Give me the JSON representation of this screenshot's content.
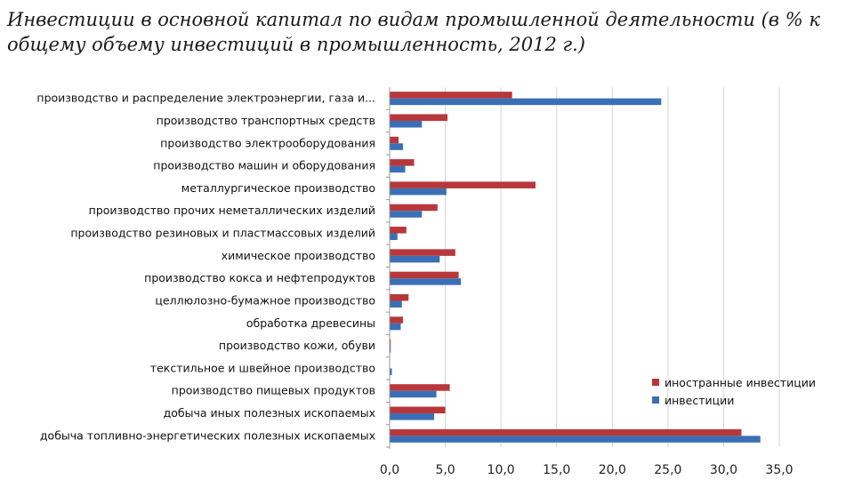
{
  "chart_data": {
    "type": "bar",
    "orientation": "horizontal",
    "title": "Инвестиции в основной капитал по видам промышленной деятельности (в % к общему объему инвестиций в промышленность, 2012 г.)",
    "categories": [
      "производство и распределение электроэнергии, газа и...",
      "производство транспортных средств",
      "производство электрооборудования",
      "производство машин и оборудования",
      "металлургическое производство",
      "производство прочих неметаллических изделий",
      "производство резиновых и пластмассовых изделий",
      "химическое производство",
      "производство кокса и нефтепродуктов",
      "целлюлозно-бумажное производство",
      "обработка древесины",
      "производство кожи, обуви",
      "текстильное и швейное производство",
      "производство пищевых продуктов",
      "добыча иных полезных ископаемых",
      "добыча топливно-энергетических полезных ископаемых"
    ],
    "series": [
      {
        "name": "иностранные инвестиции",
        "color": "#b8373a",
        "values": [
          11.0,
          5.2,
          0.8,
          2.2,
          13.1,
          4.3,
          1.5,
          5.9,
          6.2,
          1.7,
          1.2,
          0.1,
          0.0,
          5.4,
          5.0,
          31.6
        ]
      },
      {
        "name": "инвестиции",
        "color": "#3a6fb5",
        "values": [
          24.4,
          2.9,
          1.2,
          1.4,
          5.1,
          2.9,
          0.7,
          4.5,
          6.4,
          1.1,
          1.0,
          0.1,
          0.2,
          4.2,
          4.0,
          33.3
        ]
      }
    ],
    "xlim": [
      0,
      35
    ],
    "xticks": [
      "0,0",
      "5,0",
      "10,0",
      "15,0",
      "20,0",
      "25,0",
      "30,0",
      "35,0"
    ],
    "grid": true,
    "legend_position": "bottom-right"
  }
}
